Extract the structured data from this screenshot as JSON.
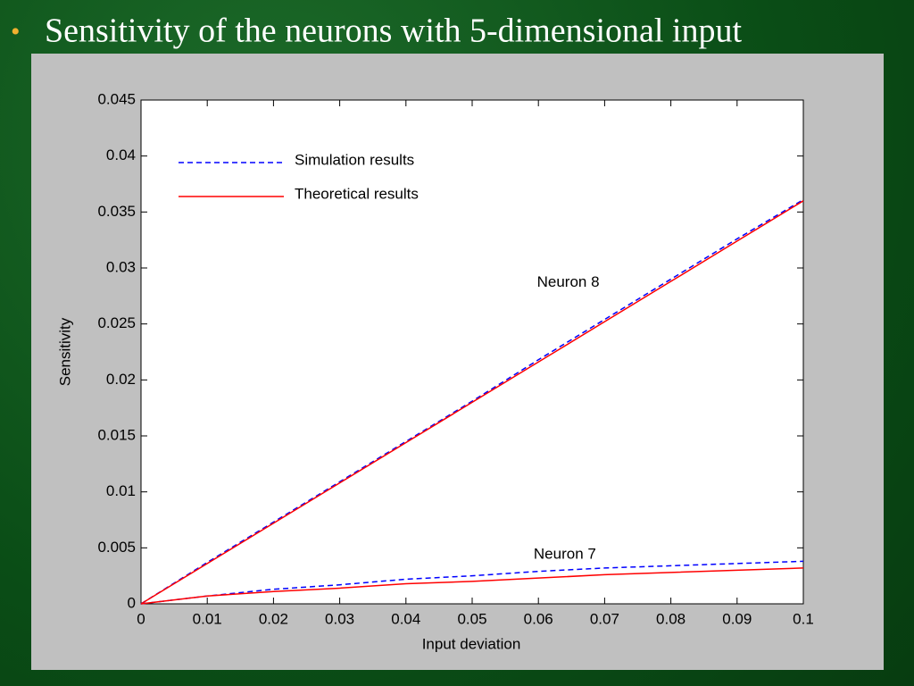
{
  "chart_data": {
    "type": "line",
    "title": "Sensitivity of the neurons with 5-dimensional input",
    "x_label": "Input deviation",
    "y_label": "Sensitivity",
    "x": [
      0,
      0.01,
      0.02,
      0.03,
      0.04,
      0.05,
      0.06,
      0.07,
      0.08,
      0.09,
      0.1
    ],
    "series": [
      {
        "name": "Simulation results",
        "color": "#0000ff",
        "dashed": true,
        "values": [
          0,
          0.0037,
          0.0073,
          0.0109,
          0.0145,
          0.0181,
          0.0218,
          0.0254,
          0.029,
          0.0326,
          0.0361
        ]
      },
      {
        "name": "Theoretical results",
        "color": "#ff0000",
        "dashed": false,
        "values": [
          0,
          0.0036,
          0.0072,
          0.0108,
          0.0144,
          0.018,
          0.0216,
          0.0252,
          0.0288,
          0.0324,
          0.036
        ]
      },
      {
        "color": "#0000ff",
        "dashed": true,
        "values": [
          0,
          0.0007,
          0.0013,
          0.0017,
          0.0022,
          0.0025,
          0.0029,
          0.0032,
          0.0034,
          0.0036,
          0.0038
        ]
      },
      {
        "color": "#ff0000",
        "dashed": false,
        "values": [
          0,
          0.0007,
          0.0011,
          0.0014,
          0.0018,
          0.002,
          0.0023,
          0.0026,
          0.0028,
          0.003,
          0.0032
        ]
      }
    ],
    "annotations": [
      {
        "text": "Neuron 8",
        "x": 0.0645,
        "y": 0.0287
      },
      {
        "text": "Neuron 7",
        "x": 0.064,
        "y": 0.0044
      }
    ],
    "xlim": [
      0,
      0.1
    ],
    "ylim": [
      0,
      0.045
    ],
    "xticks": [
      0,
      0.01,
      0.02,
      0.03,
      0.04,
      0.05,
      0.06,
      0.07,
      0.08,
      0.09,
      0.1
    ],
    "yticks": [
      0,
      0.005,
      0.01,
      0.015,
      0.02,
      0.025,
      0.03,
      0.035,
      0.04,
      0.045
    ],
    "grid": false
  }
}
